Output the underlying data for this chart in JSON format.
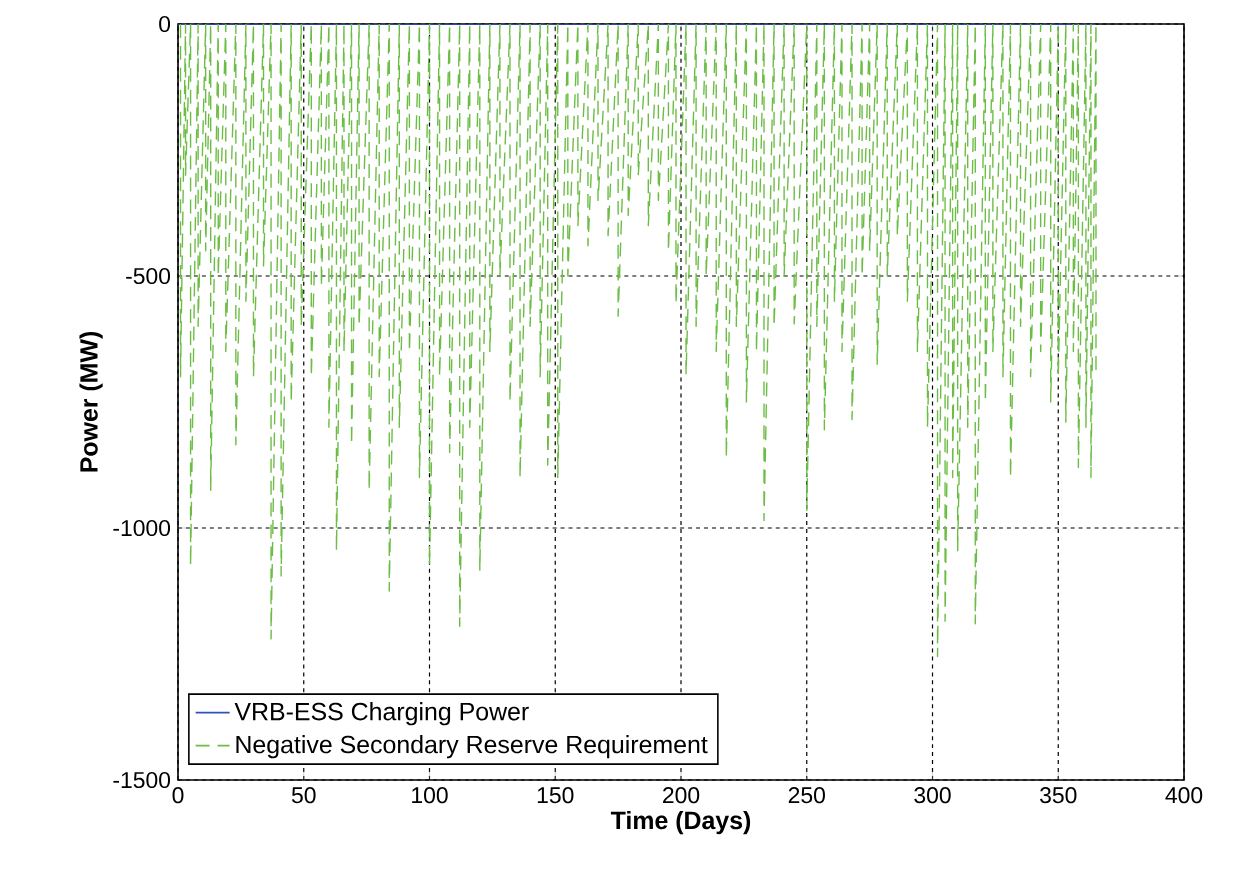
{
  "chart_data": {
    "type": "line",
    "xlabel": "Time (Days)",
    "ylabel": "Power (MW)",
    "xlim": [
      0,
      400
    ],
    "ylim": [
      -1500,
      0
    ],
    "xticks": [
      0,
      50,
      100,
      150,
      200,
      250,
      300,
      350,
      400
    ],
    "yticks": [
      -1500,
      -1000,
      -500,
      0
    ],
    "grid": true,
    "legend": "bottom left",
    "series": [
      {
        "name": "VRB-ESS Charging Power",
        "color": "#3050c0",
        "line_style": "solid",
        "x": [
          0,
          365
        ],
        "values": [
          0,
          0
        ]
      },
      {
        "name": "Negative Secondary Reserve Requirement",
        "color": "#6cbd45",
        "line_style": "dashed",
        "x": [
          1,
          1,
          3,
          3,
          5,
          5,
          8,
          8,
          11,
          11,
          13,
          13,
          16,
          16,
          19,
          19,
          23,
          23,
          27,
          27,
          30,
          30,
          34,
          34,
          37,
          37,
          41,
          41,
          45,
          45,
          49,
          49,
          53,
          53,
          57,
          57,
          60,
          60,
          63,
          63,
          66,
          66,
          69,
          69,
          72,
          72,
          76,
          76,
          80,
          80,
          84,
          84,
          88,
          88,
          92,
          92,
          96,
          96,
          100,
          100,
          104,
          104,
          108,
          108,
          112,
          112,
          116,
          116,
          120,
          120,
          124,
          124,
          128,
          128,
          132,
          132,
          136,
          136,
          140,
          140,
          144,
          144,
          147,
          147,
          151,
          151,
          155,
          155,
          159,
          159,
          163,
          163,
          167,
          167,
          171,
          171,
          175,
          175,
          179,
          179,
          183,
          183,
          187,
          187,
          191,
          191,
          195,
          195,
          198,
          198,
          202,
          202,
          206,
          206,
          210,
          210,
          214,
          214,
          218,
          218,
          222,
          222,
          226,
          226,
          230,
          230,
          233,
          233,
          237,
          237,
          241,
          241,
          245,
          245,
          250,
          250,
          254,
          254,
          257,
          257,
          261,
          261,
          264,
          264,
          268,
          268,
          272,
          272,
          275,
          275,
          278,
          278,
          282,
          282,
          286,
          286,
          290,
          290,
          294,
          294,
          298,
          298,
          302,
          302,
          305,
          305,
          308,
          308,
          310,
          310,
          314,
          314,
          317,
          317,
          321,
          321,
          324,
          324,
          328,
          328,
          331,
          331,
          335,
          335,
          339,
          339,
          343,
          343,
          347,
          347,
          350,
          350,
          353,
          353,
          356,
          356,
          358,
          358,
          361,
          361,
          363,
          363,
          365,
          365
        ],
        "values": [
          0,
          -700,
          0,
          -300,
          0,
          -1075,
          0,
          -600,
          0,
          -450,
          0,
          -925,
          0,
          -500,
          0,
          -650,
          0,
          -835,
          0,
          -550,
          0,
          -700,
          0,
          -480,
          0,
          -1220,
          0,
          -1095,
          0,
          -750,
          0,
          -600,
          0,
          -700,
          0,
          -520,
          0,
          -800,
          0,
          -1045,
          0,
          -650,
          0,
          -835,
          0,
          -600,
          0,
          -925,
          0,
          -700,
          0,
          -1125,
          0,
          -800,
          0,
          -650,
          0,
          -900,
          0,
          -1075,
          0,
          -700,
          0,
          -850,
          0,
          -1195,
          0,
          -800,
          0,
          -1085,
          0,
          -650,
          0,
          -500,
          0,
          -750,
          0,
          -900,
          0,
          -600,
          0,
          -700,
          0,
          -875,
          0,
          -900,
          0,
          -500,
          0,
          -400,
          0,
          -440,
          0,
          -350,
          0,
          -420,
          0,
          -580,
          0,
          -380,
          0,
          -300,
          0,
          -400,
          0,
          -350,
          0,
          -450,
          0,
          -555,
          0,
          -695,
          0,
          -600,
          0,
          -500,
          0,
          -650,
          0,
          -860,
          0,
          -600,
          0,
          -750,
          0,
          -650,
          0,
          -985,
          0,
          -600,
          0,
          -500,
          0,
          -595,
          0,
          -965,
          0,
          -600,
          0,
          -805,
          0,
          -550,
          0,
          -650,
          0,
          -785,
          0,
          -500,
          0,
          -450,
          0,
          -675,
          0,
          -500,
          0,
          -420,
          0,
          -550,
          0,
          -650,
          0,
          -800,
          0,
          -1255,
          0,
          -1185,
          0,
          -900,
          0,
          -1045,
          0,
          -800,
          0,
          -1190,
          0,
          -750,
          0,
          -650,
          0,
          -700,
          0,
          -900,
          0,
          -600,
          0,
          -700,
          0,
          -650,
          0,
          -750,
          0,
          -700,
          0,
          -790,
          0,
          -650,
          0,
          -880,
          0,
          -800,
          0,
          -900,
          0,
          -700
        ]
      }
    ]
  }
}
